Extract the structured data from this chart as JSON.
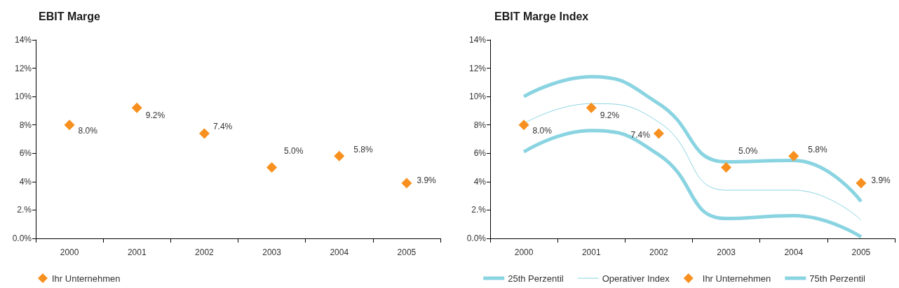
{
  "chart_data": [
    {
      "type": "scatter",
      "title": "EBIT Marge",
      "categories": [
        "2000",
        "2001",
        "2002",
        "2003",
        "2004",
        "2005"
      ],
      "series": [
        {
          "name": "Ihr Unternehmen",
          "color": "#f7901e",
          "values": [
            8.0,
            9.2,
            7.4,
            5.0,
            5.8,
            3.9
          ],
          "value_labels": [
            "8.0%",
            "9.2%",
            "7.4%",
            "5.0%",
            "5.8%",
            "3.9%"
          ]
        }
      ],
      "marker": "diamond",
      "ylim": [
        0,
        14
      ],
      "yticks": [
        {
          "value": 0,
          "label": "0.0%"
        },
        {
          "value": 2,
          "label": "2.%"
        },
        {
          "value": 4,
          "label": "4%"
        },
        {
          "value": 6,
          "label": "6%"
        },
        {
          "value": 8,
          "label": "8%"
        },
        {
          "value": 10,
          "label": "10%"
        },
        {
          "value": 12,
          "label": "12%"
        },
        {
          "value": 14,
          "label": "14%"
        }
      ],
      "legend": "bottom left"
    },
    {
      "type": "line",
      "title": "EBIT Marge Index",
      "categories": [
        "2000",
        "2001",
        "2002",
        "2003",
        "2004",
        "2005"
      ],
      "series": [
        {
          "name": "25th Perzentil",
          "color": "#8ad4e2",
          "values": [
            6.1,
            7.6,
            5.9,
            1.4,
            1.6,
            0.1
          ]
        },
        {
          "name": "Operativer Index",
          "color": "#8ad4e2",
          "values": [
            8.1,
            9.5,
            8.2,
            3.4,
            3.4,
            1.3
          ]
        },
        {
          "name": "Ihr Unternehmen",
          "type": "scatter",
          "marker": "diamond",
          "color": "#f7901e",
          "values": [
            8.0,
            9.2,
            7.4,
            5.0,
            5.8,
            3.9
          ],
          "value_labels": [
            "8.0%",
            "9.2%",
            "7.4%",
            "5.0%",
            "5.8%",
            "3.9%"
          ]
        },
        {
          "name": "75th Perzentil",
          "color": "#8ad4e2",
          "values": [
            10.0,
            11.4,
            9.5,
            5.4,
            5.5,
            2.6
          ]
        }
      ],
      "marker": "none",
      "line_style": "solid",
      "ylim": [
        0,
        14
      ],
      "yticks": [
        {
          "value": 0,
          "label": "0.0%"
        },
        {
          "value": 2,
          "label": "2.%"
        },
        {
          "value": 4,
          "label": "4%"
        },
        {
          "value": 6,
          "label": "6%"
        },
        {
          "value": 8,
          "label": "8%"
        },
        {
          "value": 10,
          "label": "10%"
        },
        {
          "value": 12,
          "label": "12%"
        },
        {
          "value": 14,
          "label": "14%"
        }
      ],
      "legend": "bottom"
    }
  ]
}
